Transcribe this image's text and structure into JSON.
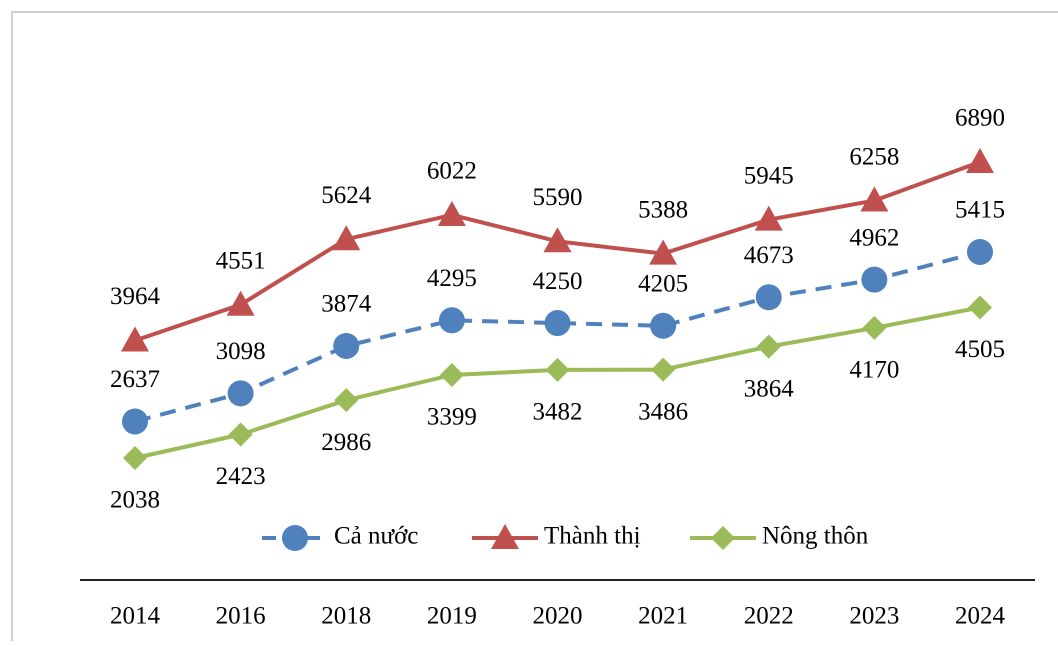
{
  "chart_data": {
    "type": "line",
    "categories": [
      "2014",
      "2016",
      "2018",
      "2019",
      "2020",
      "2021",
      "2022",
      "2023",
      "2024"
    ],
    "series": [
      {
        "name": "Cả nước",
        "color": "#4f81bd",
        "marker": "circle",
        "dashed": true,
        "values": [
          2637,
          3098,
          3874,
          4295,
          4250,
          4205,
          4673,
          4962,
          5415
        ]
      },
      {
        "name": "Thành thị",
        "color": "#c0504d",
        "marker": "triangle",
        "dashed": false,
        "values": [
          3964,
          4551,
          5624,
          6022,
          5590,
          5388,
          5945,
          6258,
          6890
        ]
      },
      {
        "name": "Nông thôn",
        "color": "#9bbb59",
        "marker": "diamond",
        "dashed": false,
        "values": [
          2038,
          2423,
          2986,
          3399,
          3482,
          3486,
          3864,
          4170,
          4505
        ]
      }
    ]
  }
}
